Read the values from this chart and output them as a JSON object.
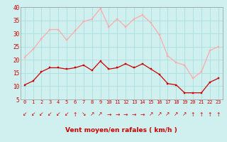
{
  "hours": [
    0,
    1,
    2,
    3,
    4,
    5,
    6,
    7,
    8,
    9,
    10,
    11,
    12,
    13,
    14,
    15,
    16,
    17,
    18,
    19,
    20,
    21,
    22,
    23
  ],
  "wind_avg": [
    10.5,
    12,
    15.5,
    17,
    17,
    16.5,
    17,
    18,
    16,
    19.5,
    16.5,
    17,
    18.5,
    17,
    18.5,
    16.5,
    14.5,
    11,
    10.5,
    7.5,
    7.5,
    7.5,
    11.5,
    13
  ],
  "wind_gust": [
    21,
    24,
    28,
    31.5,
    31.5,
    27.5,
    31,
    34.5,
    35.5,
    39.5,
    32.5,
    35.5,
    32.5,
    35.5,
    37,
    34,
    29.5,
    21.5,
    19,
    18,
    13,
    15.5,
    23.5,
    25
  ],
  "avg_color": "#cc0000",
  "gust_color": "#ffaaaa",
  "bg_color": "#cff0ee",
  "grid_color": "#aadddd",
  "xlabel": "Vent moyen/en rafales ( km/h )",
  "xlabel_color": "#cc0000",
  "ylim": [
    5,
    40
  ],
  "yticks": [
    5,
    10,
    15,
    20,
    25,
    30,
    35,
    40
  ],
  "arrow_chars": [
    "↙",
    "↙",
    "↙",
    "↙",
    "↙",
    "↙",
    "↑",
    "↘",
    "↗",
    "↗",
    "→",
    "→",
    "→",
    "→",
    "→",
    "↗",
    "↗",
    "↗",
    "↗",
    "↗",
    "↑",
    "↑",
    "↑",
    "↑"
  ]
}
